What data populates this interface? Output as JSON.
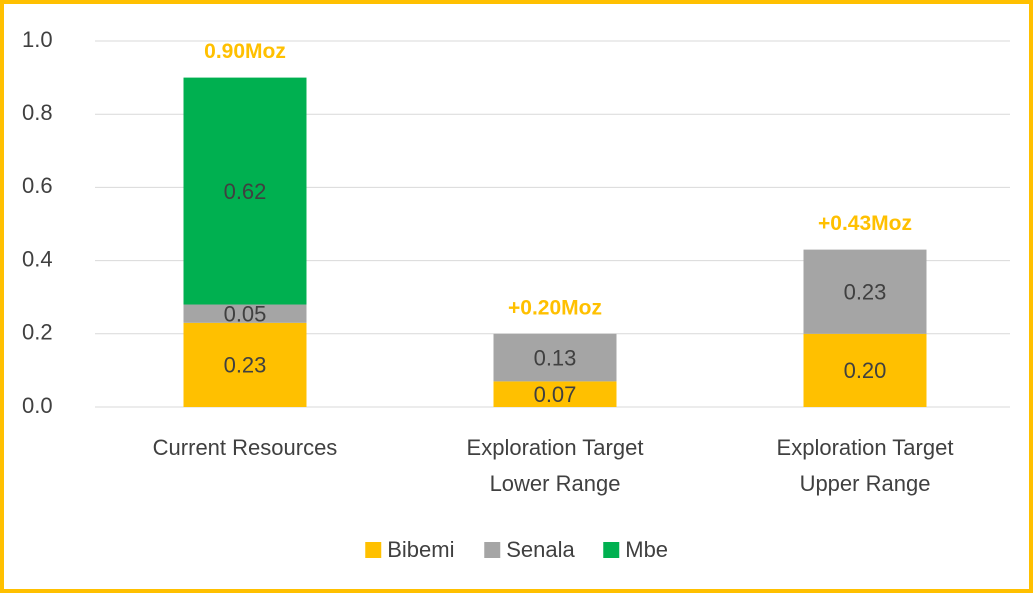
{
  "chart_data": {
    "type": "stacked_bar",
    "categories": [
      [
        "Current Resources"
      ],
      [
        "Exploration Target",
        "Lower Range"
      ],
      [
        "Exploration Target",
        "Upper Range"
      ]
    ],
    "series": [
      {
        "name": "Bibemi",
        "color": "#FFC000",
        "values": [
          0.23,
          0.07,
          0.2
        ],
        "value_labels": [
          "0.23",
          "0.07",
          "0.20"
        ]
      },
      {
        "name": "Senala",
        "color": "#A5A5A5",
        "values": [
          0.05,
          0.13,
          0.23
        ],
        "value_labels": [
          "0.05",
          "0.13",
          "0.23"
        ]
      },
      {
        "name": "Mbe",
        "color": "#00B050",
        "values": [
          0.62,
          null,
          null
        ],
        "value_labels": [
          "0.62",
          null,
          null
        ]
      }
    ],
    "total_labels": [
      "0.90Moz",
      "+0.20Moz",
      "+0.43Moz"
    ],
    "total_label_color": "#FFC000",
    "ylim": [
      0,
      1
    ],
    "yticks": [
      {
        "value": 0,
        "label": "0.0"
      },
      0.2,
      0.4,
      0.6,
      0.8,
      {
        "value": 1,
        "label": "1.0"
      }
    ],
    "grid": true,
    "legend": "bottom"
  }
}
